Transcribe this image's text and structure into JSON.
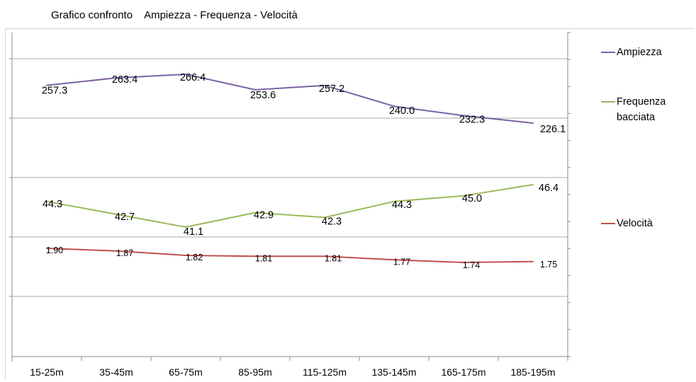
{
  "chart_data": {
    "type": "line",
    "title": "Grafico confronto",
    "subtitle": "Ampiezza - Frequenza - Velocità",
    "categories": [
      "15-25m",
      "35-45m",
      "65-75m",
      "85-95m",
      "115-125m",
      "135-145m",
      "165-175m",
      "185-195m"
    ],
    "series": [
      {
        "name": "Ampiezza",
        "color": "#7b62a8",
        "values": [
          257.3,
          263.4,
          266.4,
          253.6,
          257.2,
          240.0,
          232.3,
          226.1
        ],
        "labels": [
          "257.3",
          "263.4",
          "266.4",
          "253.6",
          "257.2",
          "240.0",
          "232.3",
          "226.1"
        ]
      },
      {
        "name": "Frequenza bacciata",
        "color": "#9aba59",
        "values": [
          44.3,
          42.7,
          41.1,
          42.9,
          42.3,
          44.3,
          45.0,
          46.4
        ],
        "labels": [
          "44.3",
          "42.7",
          "41.1",
          "42.9",
          "42.3",
          "44.3",
          "45.0",
          "46.4"
        ]
      },
      {
        "name": "Velocità",
        "color": "#c0504d",
        "values": [
          1.9,
          1.87,
          1.82,
          1.81,
          1.81,
          1.77,
          1.74,
          1.75
        ],
        "labels": [
          "1.90",
          "1.87",
          "1.82",
          "1.81",
          "1.81",
          "1.77",
          "1.74",
          "1.75"
        ]
      }
    ],
    "grid": true,
    "legend_position": "right"
  }
}
